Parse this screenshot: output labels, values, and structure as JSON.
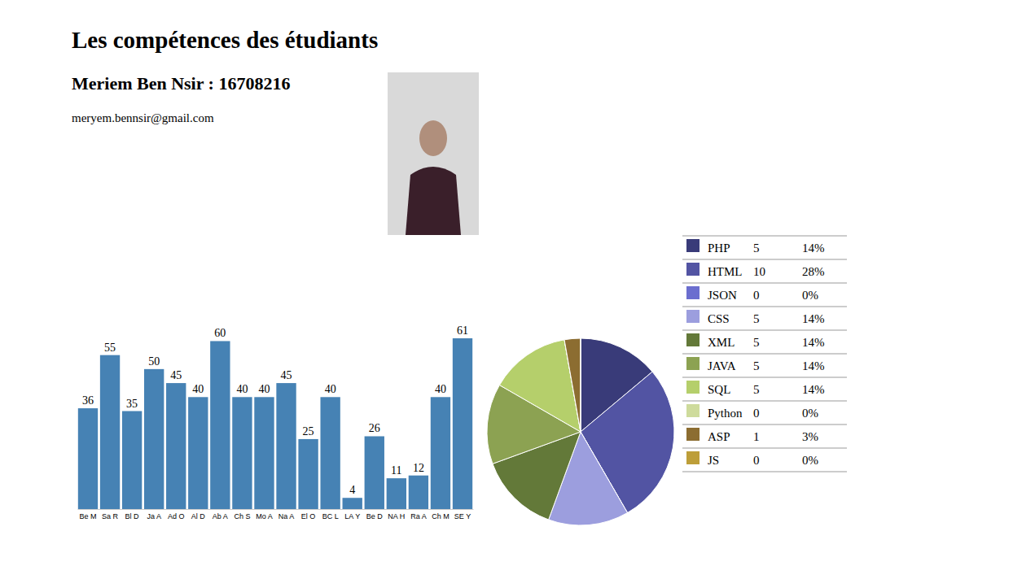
{
  "header": {
    "title": "Les compétences des étudiants",
    "name_line": "Meriem Ben Nsir : 16708216",
    "email": "meryem.bennsir@gmail.com"
  },
  "chart_data": [
    {
      "type": "bar",
      "categories": [
        "Be M",
        "Sa R",
        "Bl D",
        "Ja A",
        "Ad O",
        "Al D",
        "Ab A",
        "Ch S",
        "Mo A",
        "Na A",
        "El O",
        "BC L",
        "LA Y",
        "Be D",
        "NA H",
        "Ra A",
        "Ch M",
        "SE Y"
      ],
      "values": [
        36,
        55,
        35,
        50,
        45,
        40,
        60,
        40,
        40,
        45,
        25,
        40,
        4,
        26,
        11,
        12,
        40,
        61
      ],
      "color": "#4682b4",
      "ylim": [
        0,
        61
      ],
      "data_labels": true,
      "tick_labels": "x"
    },
    {
      "type": "pie",
      "categories": [
        "PHP",
        "HTML",
        "JSON",
        "CSS",
        "XML",
        "JAVA",
        "SQL",
        "Python",
        "ASP",
        "JS"
      ],
      "values": [
        5,
        10,
        0,
        5,
        5,
        5,
        5,
        0,
        1,
        0
      ],
      "percent_labels": [
        "14%",
        "28%",
        "0%",
        "14%",
        "14%",
        "14%",
        "14%",
        "0%",
        "3%",
        "0%"
      ],
      "colors": [
        "#393b79",
        "#5254a3",
        "#6b6ecf",
        "#9c9ede",
        "#637939",
        "#8ca252",
        "#b5cf6b",
        "#cedb9c",
        "#8c6d31",
        "#bd9e39"
      ],
      "legend": "right"
    }
  ]
}
